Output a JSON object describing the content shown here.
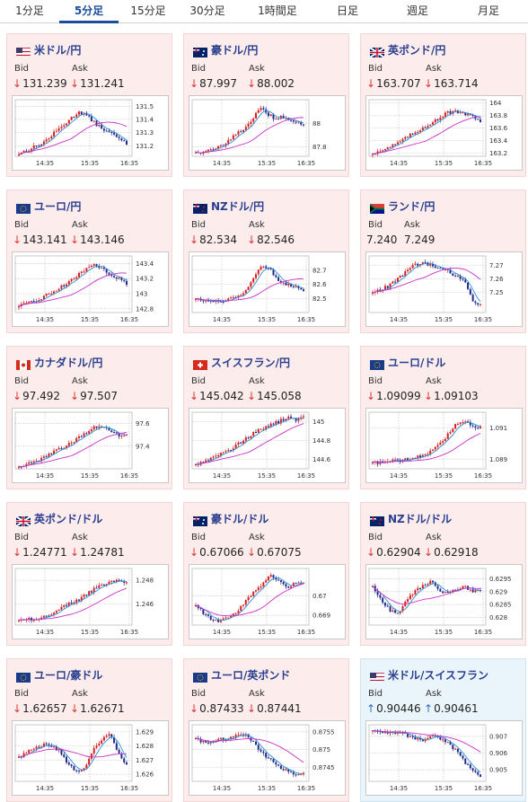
{
  "tabs": [
    {
      "label": "1分足"
    },
    {
      "label": "5分足"
    },
    {
      "label": "15分足"
    },
    {
      "label": "30分足"
    },
    {
      "label": "1時間足"
    },
    {
      "label": "日足"
    },
    {
      "label": "週足"
    },
    {
      "label": "月足"
    }
  ],
  "active_tab": 1,
  "labels": {
    "bid": "Bid",
    "ask": "Ask"
  },
  "colors": {
    "bull": "#d81e1e",
    "bear": "#1f2a8a",
    "ma_short": "#2a8fd6",
    "ma_long": "#c82fc8",
    "down_arrow": "#dd3333",
    "up_arrow": "#2a6fc4"
  },
  "cards": [
    {
      "pair": "米ドル/円",
      "flag": "us",
      "direction": "down",
      "bid": "131.239",
      "ask": "131.241"
    },
    {
      "pair": "豪ドル/円",
      "flag": "au",
      "direction": "down",
      "bid": "87.997",
      "ask": "88.002"
    },
    {
      "pair": "英ポンド/円",
      "flag": "uk",
      "direction": "down",
      "bid": "163.707",
      "ask": "163.714"
    },
    {
      "pair": "ユーロ/円",
      "flag": "eu",
      "direction": "down",
      "bid": "143.141",
      "ask": "143.146"
    },
    {
      "pair": "NZドル/円",
      "flag": "nz",
      "direction": "down",
      "bid": "82.534",
      "ask": "82.546"
    },
    {
      "pair": "ランド/円",
      "flag": "za",
      "direction": "none",
      "bid": "7.240",
      "ask": "7.249"
    },
    {
      "pair": "カナダドル/円",
      "flag": "ca",
      "direction": "down",
      "bid": "97.492",
      "ask": "97.507"
    },
    {
      "pair": "スイスフラン/円",
      "flag": "ch",
      "direction": "down",
      "bid": "145.042",
      "ask": "145.058"
    },
    {
      "pair": "ユーロ/ドル",
      "flag": "eu",
      "direction": "down",
      "bid": "1.09099",
      "ask": "1.09103"
    },
    {
      "pair": "英ポンド/ドル",
      "flag": "uk",
      "direction": "down",
      "bid": "1.24771",
      "ask": "1.24781"
    },
    {
      "pair": "豪ドル/ドル",
      "flag": "au",
      "direction": "down",
      "bid": "0.67066",
      "ask": "0.67075"
    },
    {
      "pair": "NZドル/ドル",
      "flag": "nz",
      "direction": "down",
      "bid": "0.62904",
      "ask": "0.62918"
    },
    {
      "pair": "ユーロ/豪ドル",
      "flag": "eu",
      "direction": "down",
      "bid": "1.62657",
      "ask": "1.62671"
    },
    {
      "pair": "ユーロ/英ポンド",
      "flag": "eu",
      "direction": "down",
      "bid": "0.87433",
      "ask": "0.87441"
    },
    {
      "pair": "米ドル/スイスフラン",
      "flag": "us",
      "direction": "up",
      "bid": "0.90446",
      "ask": "0.90461"
    }
  ],
  "chart_data": [
    {
      "type": "candlestick",
      "x_ticks": [
        "14:35",
        "15:35",
        "16:35"
      ],
      "y_ticks": [
        131.2,
        131.3,
        131.4,
        131.5
      ],
      "ylim": [
        131.12,
        131.55
      ],
      "close_path": [
        131.14,
        131.16,
        131.18,
        131.2,
        131.22,
        131.26,
        131.3,
        131.34,
        131.38,
        131.42,
        131.46,
        131.44,
        131.4,
        131.36,
        131.33,
        131.3,
        131.28,
        131.24,
        131.22
      ]
    },
    {
      "type": "candlestick",
      "x_ticks": [
        "14:35",
        "15:35",
        "16:35"
      ],
      "y_ticks": [
        87.8,
        88
      ],
      "ylim": [
        87.72,
        88.2
      ],
      "close_path": [
        87.76,
        87.75,
        87.77,
        87.79,
        87.83,
        87.88,
        87.92,
        87.97,
        88.05,
        88.12,
        88.08,
        88.04,
        88.06,
        88.02,
        88.0,
        88.0
      ]
    },
    {
      "type": "candlestick",
      "x_ticks": [
        "14:35",
        "15:35",
        "16:35"
      ],
      "y_ticks": [
        163.2,
        163.4,
        163.6,
        163.8,
        164
      ],
      "ylim": [
        163.15,
        164.05
      ],
      "close_path": [
        163.2,
        163.24,
        163.3,
        163.36,
        163.44,
        163.52,
        163.6,
        163.68,
        163.76,
        163.84,
        163.86,
        163.82,
        163.78,
        163.72
      ]
    },
    {
      "type": "candlestick",
      "x_ticks": [
        "14:35",
        "15:35",
        "16:35"
      ],
      "y_ticks": [
        142.8,
        143,
        143.2,
        143.4
      ],
      "ylim": [
        142.75,
        143.5
      ],
      "close_path": [
        142.84,
        142.86,
        142.9,
        142.95,
        143.0,
        143.06,
        143.12,
        143.2,
        143.28,
        143.34,
        143.38,
        143.32,
        143.26,
        143.2,
        143.14
      ]
    },
    {
      "type": "candlestick",
      "x_ticks": [
        "14:35",
        "15:35",
        "16:35"
      ],
      "y_ticks": [
        82.5,
        82.6,
        82.7
      ],
      "ylim": [
        82.4,
        82.8
      ],
      "close_path": [
        82.5,
        82.48,
        82.49,
        82.47,
        82.5,
        82.52,
        82.55,
        82.66,
        82.74,
        82.7,
        82.62,
        82.6,
        82.58,
        82.54
      ]
    },
    {
      "type": "candlestick",
      "x_ticks": [
        "14:35",
        "15:35",
        "16:35"
      ],
      "y_ticks": [
        7.25,
        7.26,
        7.27
      ],
      "ylim": [
        7.235,
        7.277
      ],
      "close_path": [
        7.25,
        7.252,
        7.255,
        7.26,
        7.265,
        7.27,
        7.272,
        7.27,
        7.268,
        7.266,
        7.262,
        7.26,
        7.245,
        7.24
      ]
    },
    {
      "type": "candlestick",
      "x_ticks": [
        "14:35",
        "15:35",
        "16:35"
      ],
      "y_ticks": [
        97.4,
        97.6
      ],
      "ylim": [
        97.2,
        97.7
      ],
      "close_path": [
        97.22,
        97.24,
        97.26,
        97.3,
        97.34,
        97.38,
        97.42,
        97.46,
        97.52,
        97.56,
        97.58,
        97.54,
        97.5,
        97.49
      ]
    },
    {
      "type": "candlestick",
      "x_ticks": [
        "14:35",
        "15:35",
        "16:35"
      ],
      "y_ticks": [
        144.6,
        144.8,
        145
      ],
      "ylim": [
        144.5,
        145.1
      ],
      "close_path": [
        144.55,
        144.58,
        144.62,
        144.66,
        144.7,
        144.76,
        144.82,
        144.88,
        144.92,
        144.96,
        145.0,
        145.04,
        145.02,
        145.04
      ]
    },
    {
      "type": "candlestick",
      "x_ticks": [
        "14:35",
        "15:35",
        "16:35"
      ],
      "y_ticks": [
        1.089,
        1.091
      ],
      "ylim": [
        1.0884,
        1.092
      ],
      "close_path": [
        1.0888,
        1.0888,
        1.0889,
        1.0889,
        1.089,
        1.0891,
        1.0892,
        1.0895,
        1.0899,
        1.0905,
        1.0912,
        1.0914,
        1.0912,
        1.091
      ]
    },
    {
      "type": "candlestick",
      "x_ticks": [
        "14:35",
        "15:35",
        "16:35"
      ],
      "y_ticks": [
        1.246,
        1.248
      ],
      "ylim": [
        1.2442,
        1.249
      ],
      "close_path": [
        1.2446,
        1.2447,
        1.2447,
        1.2449,
        1.2452,
        1.2456,
        1.246,
        1.2463,
        1.2467,
        1.2472,
        1.2476,
        1.2479,
        1.2481,
        1.2477
      ]
    },
    {
      "type": "candlestick",
      "x_ticks": [
        "14:35",
        "15:35",
        "16:35"
      ],
      "y_ticks": [
        0.669,
        0.67
      ],
      "ylim": [
        0.6685,
        0.6714
      ],
      "close_path": [
        0.6695,
        0.6691,
        0.6688,
        0.6687,
        0.6689,
        0.6692,
        0.6697,
        0.6702,
        0.6706,
        0.671,
        0.6708,
        0.6704,
        0.6707,
        0.6706
      ]
    },
    {
      "type": "candlestick",
      "x_ticks": [
        "14:35",
        "15:35",
        "16:35"
      ],
      "y_ticks": [
        0.628,
        0.6285,
        0.629,
        0.6295
      ],
      "ylim": [
        0.6277,
        0.6299
      ],
      "close_path": [
        0.6292,
        0.6287,
        0.6283,
        0.6281,
        0.6286,
        0.629,
        0.6292,
        0.6294,
        0.6291,
        0.6289,
        0.6291,
        0.6292,
        0.629,
        0.629
      ]
    },
    {
      "type": "candlestick",
      "x_ticks": [
        "14:35",
        "15:35",
        "16:35"
      ],
      "y_ticks": [
        1.626,
        1.627,
        1.628,
        1.629
      ],
      "ylim": [
        1.6255,
        1.6295
      ],
      "close_path": [
        1.6272,
        1.6276,
        1.6278,
        1.6281,
        1.628,
        1.6276,
        1.6266,
        1.6262,
        1.6265,
        1.6277,
        1.6285,
        1.6288,
        1.6276,
        1.6266
      ]
    },
    {
      "type": "candlestick",
      "x_ticks": [
        "14:35",
        "15:35",
        "16:35"
      ],
      "y_ticks": [
        0.8745,
        0.875,
        0.8755
      ],
      "ylim": [
        0.8741,
        0.8757
      ],
      "close_path": [
        0.8753,
        0.8752,
        0.8752,
        0.8753,
        0.8753,
        0.8754,
        0.8754,
        0.8752,
        0.8749,
        0.8747,
        0.8745,
        0.8744,
        0.8743,
        0.8743
      ]
    },
    {
      "type": "candlestick",
      "x_ticks": [
        "14:35",
        "15:35",
        "16:35"
      ],
      "y_ticks": [
        0.905,
        0.906,
        0.907
      ],
      "ylim": [
        0.9043,
        0.9077
      ],
      "close_path": [
        0.9073,
        0.9073,
        0.9072,
        0.9072,
        0.9071,
        0.9069,
        0.9068,
        0.907,
        0.9069,
        0.9066,
        0.9062,
        0.9055,
        0.905,
        0.9045
      ]
    }
  ]
}
